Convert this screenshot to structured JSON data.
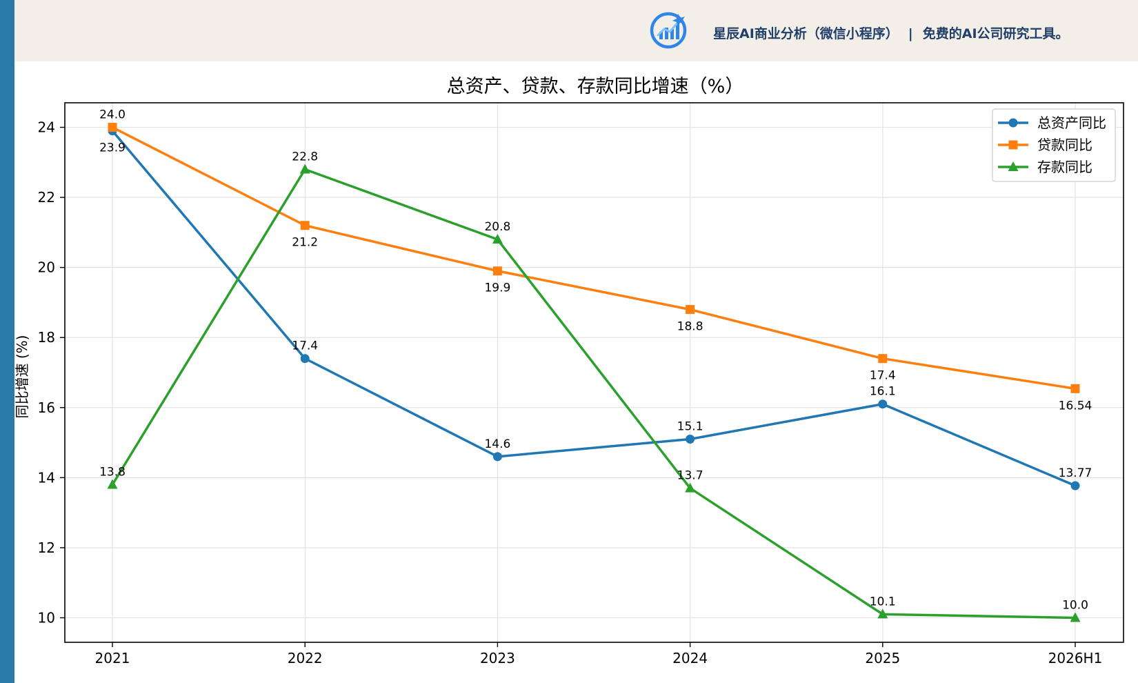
{
  "banner": {
    "app_name": "星辰AI商业分析（微信小程序）",
    "separator": "|",
    "tagline": "免费的AI公司研究工具。"
  },
  "colors": {
    "stripe": "#2a7aa9",
    "banner_bg": "#f3efe8",
    "brand_text": "#1f3e68"
  },
  "chart_data": {
    "type": "line",
    "title": "总资产、贷款、存款同比增速（%）",
    "xlabel": "",
    "ylabel": "同比增速 (%)",
    "categories": [
      "2021",
      "2022",
      "2023",
      "2024",
      "2025",
      "2026H1"
    ],
    "ylim": [
      9.3,
      24.7
    ],
    "yticks": [
      10,
      12,
      14,
      16,
      18,
      20,
      22,
      24
    ],
    "grid": true,
    "legend_position": "top-right",
    "series": [
      {
        "name": "总资产同比",
        "color": "#1f77b4",
        "marker": "circle",
        "values": [
          23.9,
          17.4,
          14.6,
          15.1,
          16.1,
          13.77
        ],
        "labels": [
          "23.9",
          "17.4",
          "14.6",
          "15.1",
          "16.1",
          "13.77"
        ],
        "label_side": [
          "below",
          "above",
          "above",
          "above",
          "above",
          "above"
        ]
      },
      {
        "name": "贷款同比",
        "color": "#ff7f0e",
        "marker": "square",
        "values": [
          24.0,
          21.2,
          19.9,
          18.8,
          17.4,
          16.54
        ],
        "labels": [
          "24.0",
          "21.2",
          "19.9",
          "18.8",
          "17.4",
          "16.54"
        ],
        "label_side": [
          "above",
          "below",
          "below",
          "below",
          "below",
          "below"
        ]
      },
      {
        "name": "存款同比",
        "color": "#2ca02c",
        "marker": "triangle",
        "values": [
          13.8,
          22.8,
          20.8,
          13.7,
          10.1,
          10.0
        ],
        "labels": [
          "13.8",
          "22.8",
          "20.8",
          "13.7",
          "10.1",
          "10.0"
        ],
        "label_side": [
          "above",
          "above",
          "above",
          "above",
          "above",
          "above"
        ]
      }
    ]
  }
}
